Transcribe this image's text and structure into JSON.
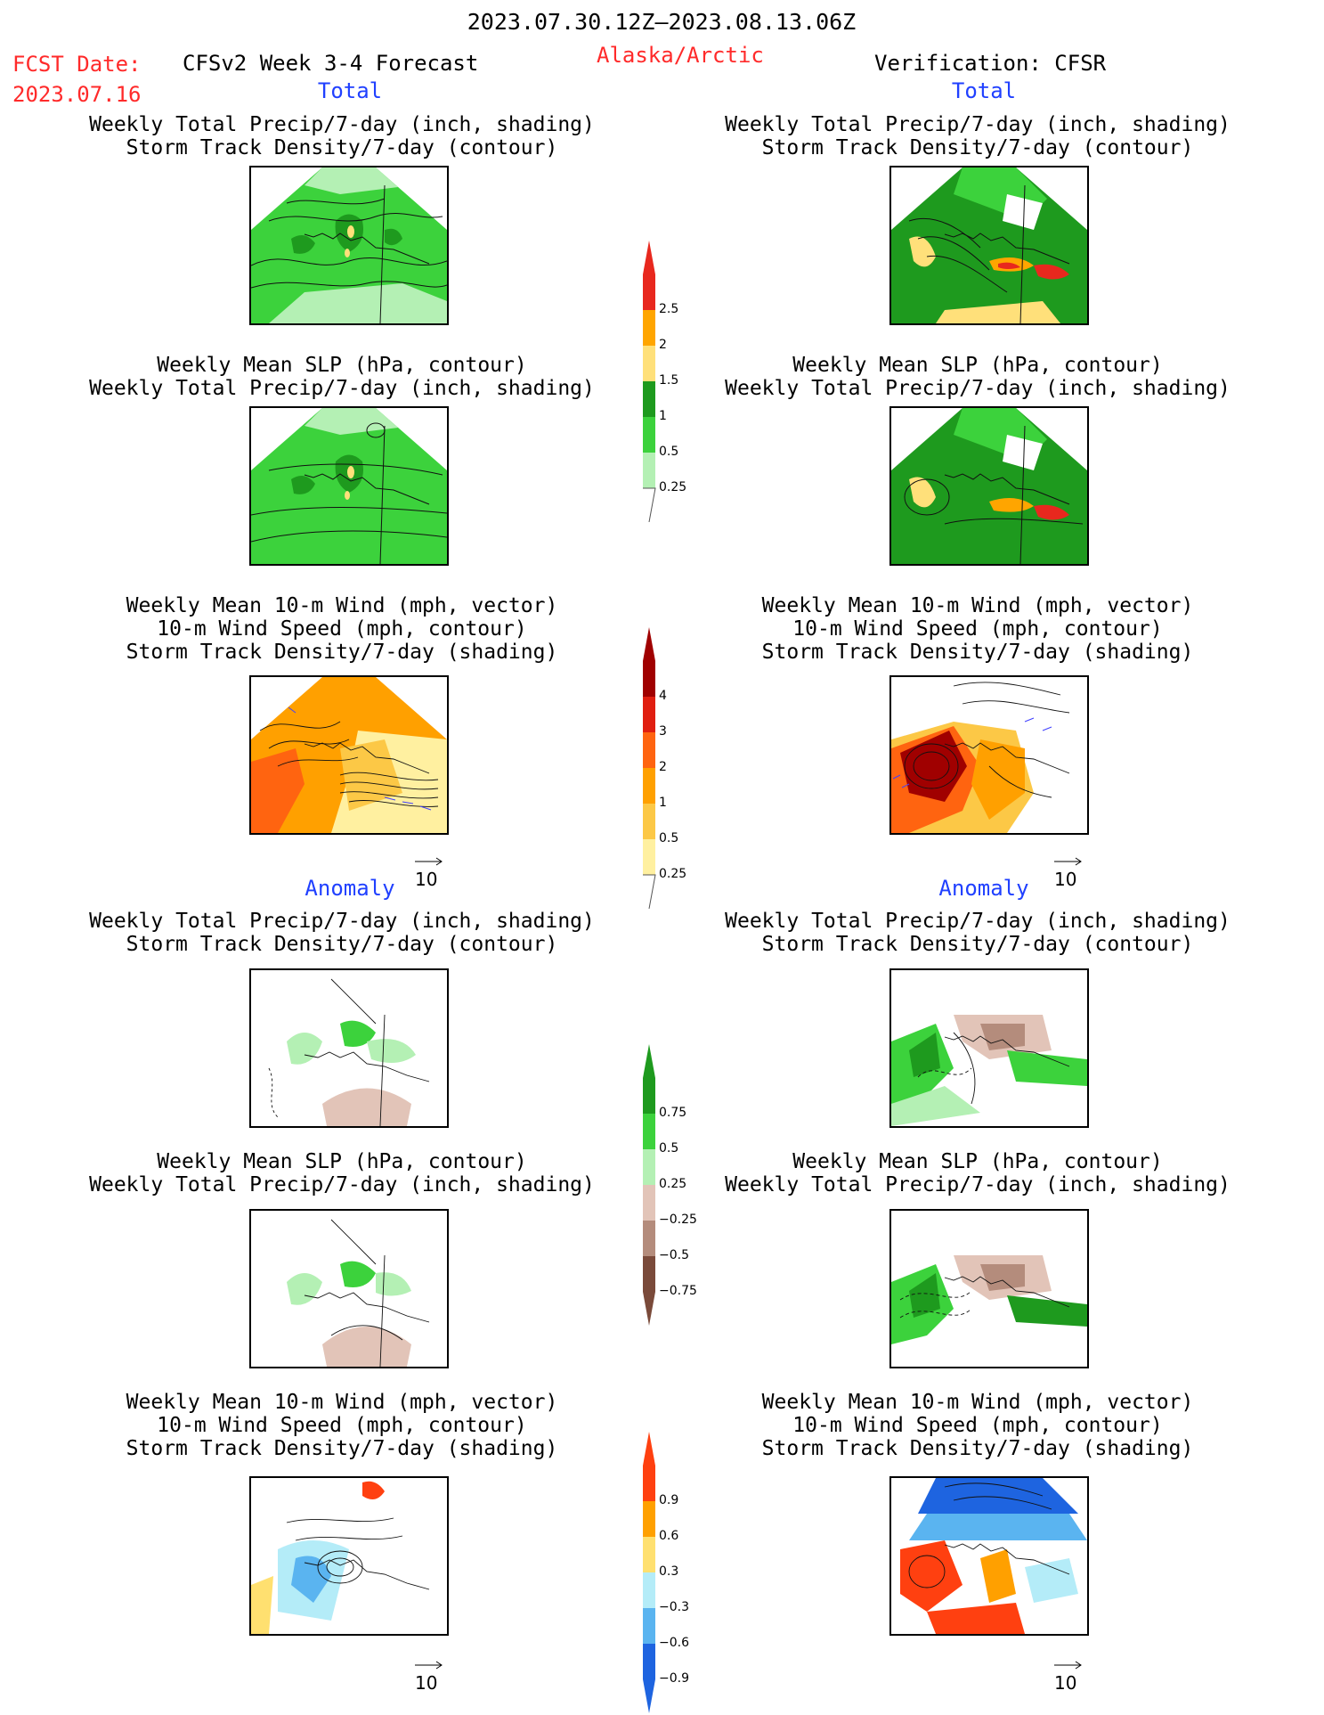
{
  "header": {
    "date_range": "2023.07.30.12Z–2023.08.13.06Z",
    "fcst_label": "FCST Date:",
    "fcst_date": "2023.07.16",
    "model": "CFSv2 Week 3-4 Forecast",
    "region": "Alaska/Arctic",
    "verification": "Verification: CFSR"
  },
  "sections": {
    "total": "Total",
    "anomaly": "Anomaly"
  },
  "panel_titles": {
    "precip_storm": [
      "Weekly Total Precip/7-day (inch, shading)",
      "Storm Track Density/7-day (contour)"
    ],
    "slp_precip": [
      "Weekly Mean SLP (hPa, contour)",
      "Weekly Total Precip/7-day (inch, shading)"
    ],
    "wind_storm": [
      "Weekly Mean 10-m Wind (mph, vector)",
      "10-m Wind Speed (mph, contour)",
      "Storm Track Density/7-day (shading)"
    ]
  },
  "vector_reference": "10",
  "colorbars": {
    "precip_total": {
      "labels": [
        "2.5",
        "2",
        "1.5",
        "1",
        "0.5",
        "0.25"
      ],
      "colors": [
        "#e8281e",
        "#ffa500",
        "#ffe07a",
        "#1e9a1e",
        "#3cd23c",
        "#b4f0b4"
      ]
    },
    "storm_total": {
      "labels": [
        "4",
        "3",
        "2",
        "1",
        "0.5",
        "0.25"
      ],
      "colors": [
        "#a00000",
        "#e01e10",
        "#ff6410",
        "#ffa000",
        "#fcc846",
        "#fff0a0"
      ]
    },
    "precip_anom": {
      "labels": [
        "0.75",
        "0.5",
        "0.25",
        "−0.25",
        "−0.5",
        "−0.75"
      ],
      "colors": [
        "#1e9a1e",
        "#3cd23c",
        "#b4f0b4",
        "#e2c4b8",
        "#b48c7c",
        "#7a4a3a"
      ]
    },
    "storm_anom": {
      "labels": [
        "0.9",
        "0.6",
        "0.3",
        "−0.3",
        "−0.6",
        "−0.9"
      ],
      "colors": [
        "#ff4010",
        "#ffa000",
        "#ffe070",
        "#b4ecf8",
        "#5ab4f0",
        "#1e64e0"
      ]
    }
  }
}
